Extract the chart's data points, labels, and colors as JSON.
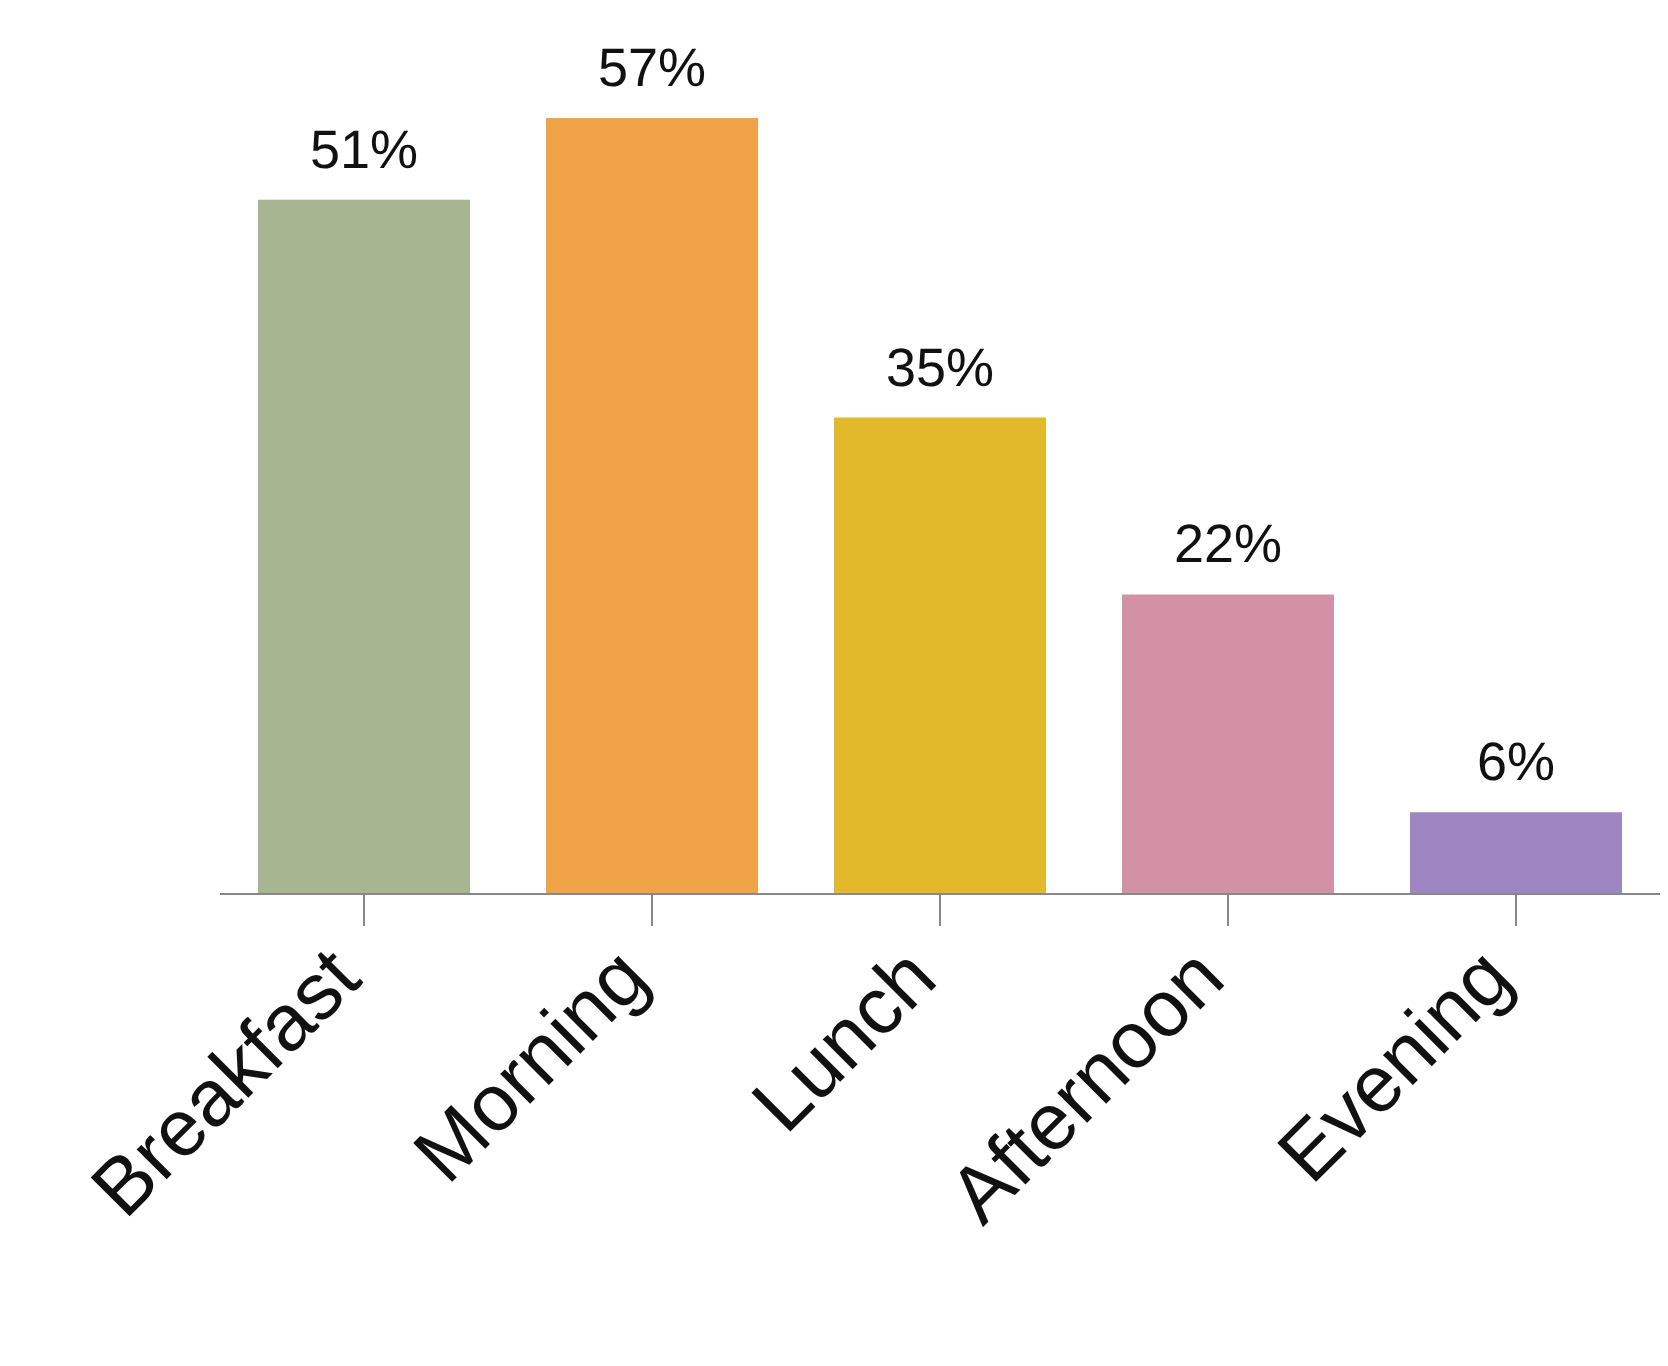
{
  "chart_data": {
    "type": "bar",
    "categories": [
      "Breakfast",
      "Morning",
      "Lunch",
      "Afternoon",
      "Evening"
    ],
    "values": [
      51,
      57,
      35,
      22,
      6
    ],
    "colors": [
      "#a8b591",
      "#f0a447",
      "#e2b92a",
      "#d291a5",
      "#9d86c1"
    ],
    "value_labels": [
      "51%",
      "57%",
      "35%",
      "22%",
      "6%"
    ],
    "legend": false,
    "grid": false
  }
}
